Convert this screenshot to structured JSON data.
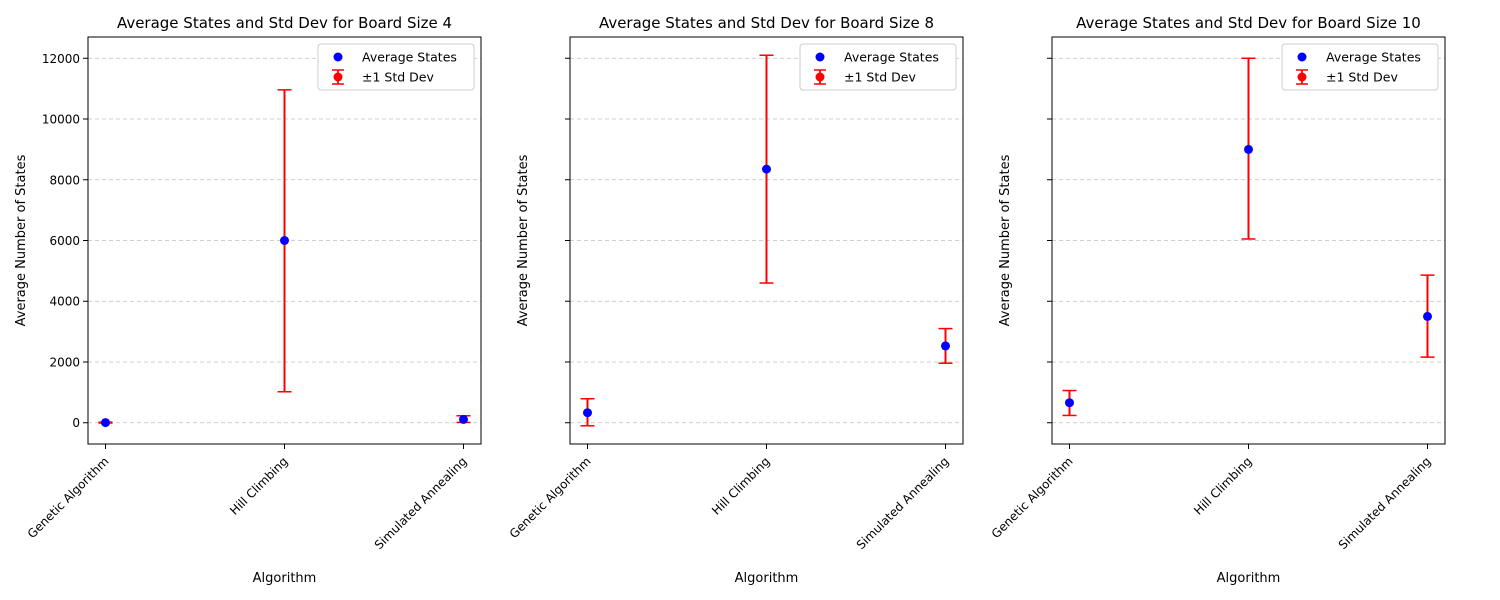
{
  "colors": {
    "mean": "#0000ff",
    "std": "#ff0000",
    "grid": "#b0b0b0"
  },
  "chart_data": [
    {
      "type": "scatter",
      "title": "Average States and Std Dev for Board Size 4",
      "xlabel": "Algorithm",
      "ylabel": "Average Number of States",
      "categories": [
        "Genetic Algorithm",
        "Hill Climbing",
        "Simulated Annealing"
      ],
      "series": [
        {
          "name": "Average States",
          "values": [
            5,
            6000,
            110
          ]
        },
        {
          "name": "±1 Std Dev",
          "lower": [
            -10,
            1020,
            10
          ],
          "upper": [
            20,
            10960,
            230
          ]
        }
      ],
      "yticks": [
        0,
        2000,
        4000,
        6000,
        8000,
        10000,
        12000
      ],
      "show_ytick_labels": true,
      "ylim": [
        -700,
        12700
      ],
      "grid": "y",
      "legend": "upper right"
    },
    {
      "type": "scatter",
      "title": "Average States and Std Dev for Board Size 8",
      "xlabel": "Algorithm",
      "ylabel": "Average Number of States",
      "categories": [
        "Genetic Algorithm",
        "Hill Climbing",
        "Simulated Annealing"
      ],
      "series": [
        {
          "name": "Average States",
          "values": [
            330,
            8350,
            2530
          ]
        },
        {
          "name": "±1 Std Dev",
          "lower": [
            -100,
            4600,
            1960
          ],
          "upper": [
            790,
            12100,
            3100
          ]
        }
      ],
      "yticks": [
        0,
        2000,
        4000,
        6000,
        8000,
        10000,
        12000
      ],
      "show_ytick_labels": false,
      "ylim": [
        -700,
        12700
      ],
      "grid": "y",
      "legend": "upper right"
    },
    {
      "type": "scatter",
      "title": "Average States and Std Dev for Board Size 10",
      "xlabel": "Algorithm",
      "ylabel": "Average Number of States",
      "categories": [
        "Genetic Algorithm",
        "Hill Climbing",
        "Simulated Annealing"
      ],
      "series": [
        {
          "name": "Average States",
          "values": [
            660,
            9000,
            3500
          ]
        },
        {
          "name": "±1 Std Dev",
          "lower": [
            240,
            6050,
            2160
          ],
          "upper": [
            1060,
            12000,
            4860
          ]
        }
      ],
      "yticks": [
        0,
        2000,
        4000,
        6000,
        8000,
        10000,
        12000
      ],
      "show_ytick_labels": false,
      "ylim": [
        -700,
        12700
      ],
      "grid": "y",
      "legend": "upper right"
    }
  ]
}
